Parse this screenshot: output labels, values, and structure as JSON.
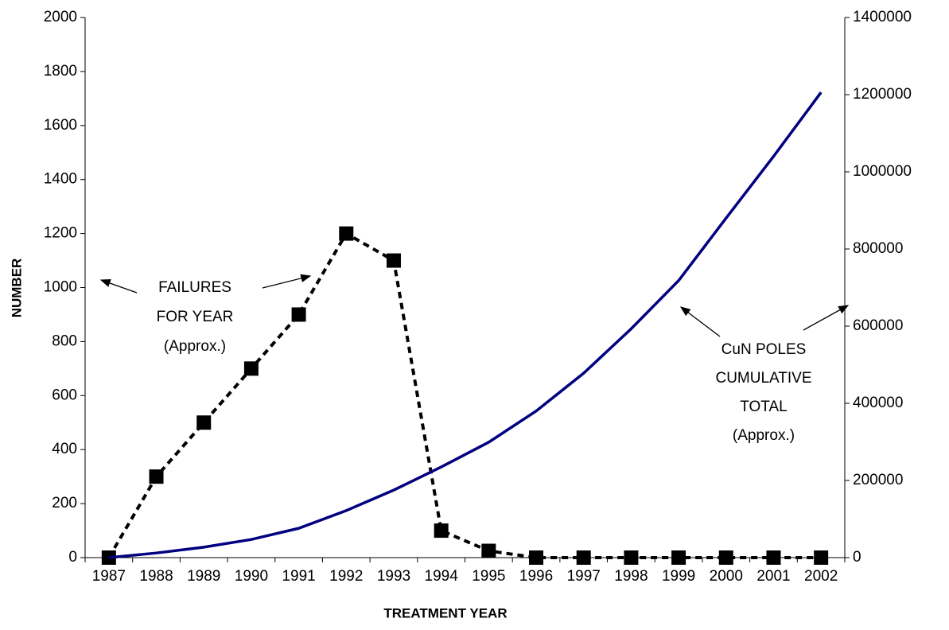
{
  "chart_data": {
    "type": "line",
    "x_label": "TREATMENT YEAR",
    "y_label": "NUMBER",
    "categories": [
      "1987",
      "1988",
      "1989",
      "1990",
      "1991",
      "1992",
      "1993",
      "1994",
      "1995",
      "1996",
      "1997",
      "1998",
      "1999",
      "2000",
      "2001",
      "2002"
    ],
    "series": [
      {
        "name": "FAILURES FOR YEAR (Approx.)",
        "color": "#000000",
        "axis": "y",
        "values": [
          0,
          300,
          500,
          700,
          900,
          1200,
          1100,
          100,
          25,
          0,
          0,
          0,
          0,
          0,
          0,
          0
        ]
      },
      {
        "name": "CuN POLES CUMULATIVE TOTAL (Approx.)",
        "color": "#000080",
        "axis": "y2",
        "values": [
          0,
          12000,
          27000,
          47000,
          76000,
          122000,
          175000,
          235000,
          299000,
          380000,
          478000,
          593000,
          718000,
          880000,
          1040000,
          1206000
        ]
      }
    ],
    "ylim": [
      0,
      2000
    ],
    "yticks": [
      0,
      200,
      400,
      600,
      800,
      1000,
      1200,
      1400,
      1600,
      1800,
      2000
    ],
    "y2lim": [
      0,
      1400000
    ],
    "y2ticks": [
      0,
      200000,
      400000,
      600000,
      800000,
      1000000,
      1200000,
      1400000
    ],
    "annotations": [
      {
        "lines": [
          "FAILURES",
          "FOR YEAR",
          "(Approx.)"
        ]
      },
      {
        "lines": [
          "CuN POLES",
          "CUMULATIVE",
          "TOTAL",
          "(Approx.)"
        ]
      }
    ]
  }
}
